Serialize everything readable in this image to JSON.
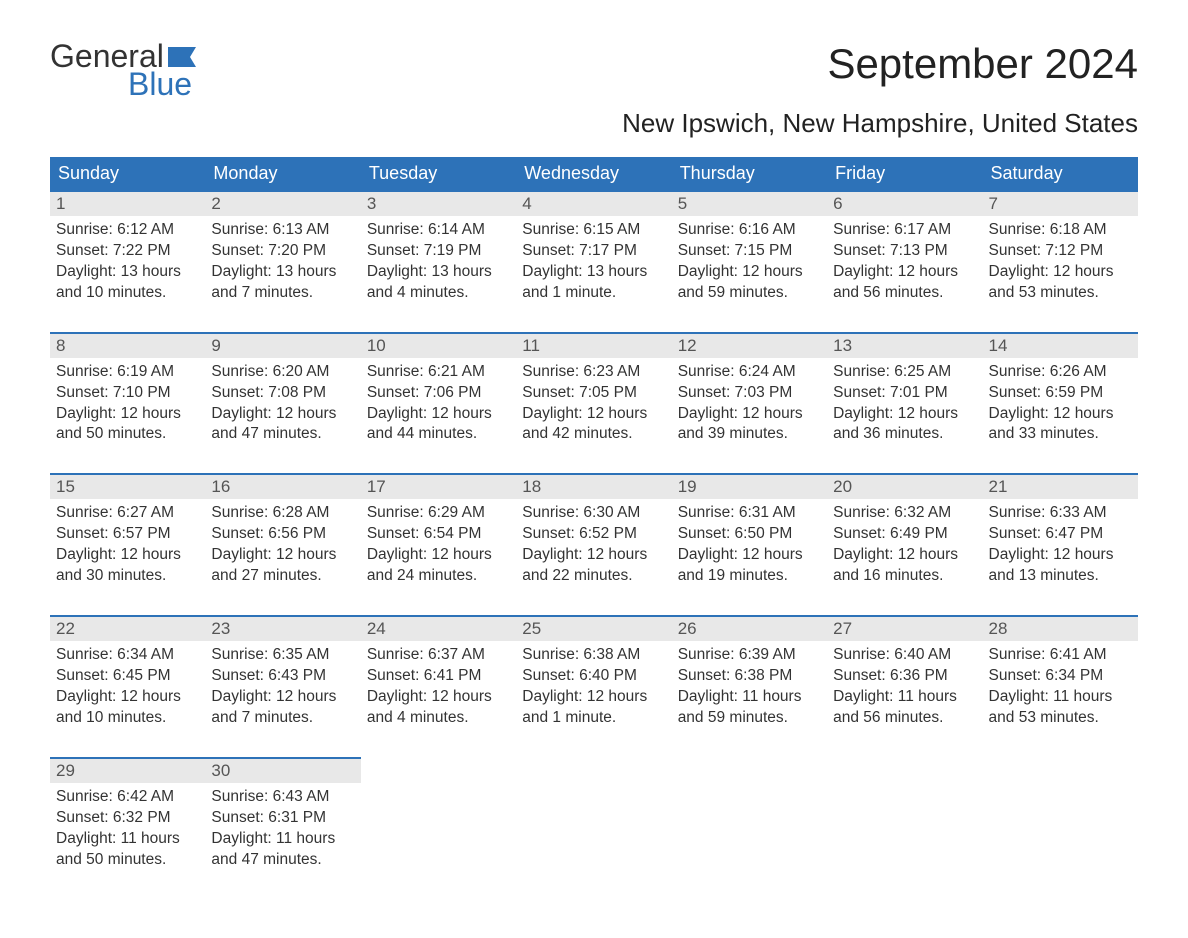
{
  "logo": {
    "word1": "General",
    "word2": "Blue"
  },
  "title": "September 2024",
  "location": "New Ipswich, New Hampshire, United States",
  "colors": {
    "header_bg": "#2d72b8",
    "header_text": "#ffffff",
    "daynum_bg": "#e8e8e8",
    "border": "#2d72b8",
    "text": "#333333",
    "background": "#ffffff"
  },
  "day_labels": [
    "Sunday",
    "Monday",
    "Tuesday",
    "Wednesday",
    "Thursday",
    "Friday",
    "Saturday"
  ],
  "weeks": [
    [
      {
        "n": "1",
        "sunrise": "Sunrise: 6:12 AM",
        "sunset": "Sunset: 7:22 PM",
        "d1": "Daylight: 13 hours",
        "d2": "and 10 minutes."
      },
      {
        "n": "2",
        "sunrise": "Sunrise: 6:13 AM",
        "sunset": "Sunset: 7:20 PM",
        "d1": "Daylight: 13 hours",
        "d2": "and 7 minutes."
      },
      {
        "n": "3",
        "sunrise": "Sunrise: 6:14 AM",
        "sunset": "Sunset: 7:19 PM",
        "d1": "Daylight: 13 hours",
        "d2": "and 4 minutes."
      },
      {
        "n": "4",
        "sunrise": "Sunrise: 6:15 AM",
        "sunset": "Sunset: 7:17 PM",
        "d1": "Daylight: 13 hours",
        "d2": "and 1 minute."
      },
      {
        "n": "5",
        "sunrise": "Sunrise: 6:16 AM",
        "sunset": "Sunset: 7:15 PM",
        "d1": "Daylight: 12 hours",
        "d2": "and 59 minutes."
      },
      {
        "n": "6",
        "sunrise": "Sunrise: 6:17 AM",
        "sunset": "Sunset: 7:13 PM",
        "d1": "Daylight: 12 hours",
        "d2": "and 56 minutes."
      },
      {
        "n": "7",
        "sunrise": "Sunrise: 6:18 AM",
        "sunset": "Sunset: 7:12 PM",
        "d1": "Daylight: 12 hours",
        "d2": "and 53 minutes."
      }
    ],
    [
      {
        "n": "8",
        "sunrise": "Sunrise: 6:19 AM",
        "sunset": "Sunset: 7:10 PM",
        "d1": "Daylight: 12 hours",
        "d2": "and 50 minutes."
      },
      {
        "n": "9",
        "sunrise": "Sunrise: 6:20 AM",
        "sunset": "Sunset: 7:08 PM",
        "d1": "Daylight: 12 hours",
        "d2": "and 47 minutes."
      },
      {
        "n": "10",
        "sunrise": "Sunrise: 6:21 AM",
        "sunset": "Sunset: 7:06 PM",
        "d1": "Daylight: 12 hours",
        "d2": "and 44 minutes."
      },
      {
        "n": "11",
        "sunrise": "Sunrise: 6:23 AM",
        "sunset": "Sunset: 7:05 PM",
        "d1": "Daylight: 12 hours",
        "d2": "and 42 minutes."
      },
      {
        "n": "12",
        "sunrise": "Sunrise: 6:24 AM",
        "sunset": "Sunset: 7:03 PM",
        "d1": "Daylight: 12 hours",
        "d2": "and 39 minutes."
      },
      {
        "n": "13",
        "sunrise": "Sunrise: 6:25 AM",
        "sunset": "Sunset: 7:01 PM",
        "d1": "Daylight: 12 hours",
        "d2": "and 36 minutes."
      },
      {
        "n": "14",
        "sunrise": "Sunrise: 6:26 AM",
        "sunset": "Sunset: 6:59 PM",
        "d1": "Daylight: 12 hours",
        "d2": "and 33 minutes."
      }
    ],
    [
      {
        "n": "15",
        "sunrise": "Sunrise: 6:27 AM",
        "sunset": "Sunset: 6:57 PM",
        "d1": "Daylight: 12 hours",
        "d2": "and 30 minutes."
      },
      {
        "n": "16",
        "sunrise": "Sunrise: 6:28 AM",
        "sunset": "Sunset: 6:56 PM",
        "d1": "Daylight: 12 hours",
        "d2": "and 27 minutes."
      },
      {
        "n": "17",
        "sunrise": "Sunrise: 6:29 AM",
        "sunset": "Sunset: 6:54 PM",
        "d1": "Daylight: 12 hours",
        "d2": "and 24 minutes."
      },
      {
        "n": "18",
        "sunrise": "Sunrise: 6:30 AM",
        "sunset": "Sunset: 6:52 PM",
        "d1": "Daylight: 12 hours",
        "d2": "and 22 minutes."
      },
      {
        "n": "19",
        "sunrise": "Sunrise: 6:31 AM",
        "sunset": "Sunset: 6:50 PM",
        "d1": "Daylight: 12 hours",
        "d2": "and 19 minutes."
      },
      {
        "n": "20",
        "sunrise": "Sunrise: 6:32 AM",
        "sunset": "Sunset: 6:49 PM",
        "d1": "Daylight: 12 hours",
        "d2": "and 16 minutes."
      },
      {
        "n": "21",
        "sunrise": "Sunrise: 6:33 AM",
        "sunset": "Sunset: 6:47 PM",
        "d1": "Daylight: 12 hours",
        "d2": "and 13 minutes."
      }
    ],
    [
      {
        "n": "22",
        "sunrise": "Sunrise: 6:34 AM",
        "sunset": "Sunset: 6:45 PM",
        "d1": "Daylight: 12 hours",
        "d2": "and 10 minutes."
      },
      {
        "n": "23",
        "sunrise": "Sunrise: 6:35 AM",
        "sunset": "Sunset: 6:43 PM",
        "d1": "Daylight: 12 hours",
        "d2": "and 7 minutes."
      },
      {
        "n": "24",
        "sunrise": "Sunrise: 6:37 AM",
        "sunset": "Sunset: 6:41 PM",
        "d1": "Daylight: 12 hours",
        "d2": "and 4 minutes."
      },
      {
        "n": "25",
        "sunrise": "Sunrise: 6:38 AM",
        "sunset": "Sunset: 6:40 PM",
        "d1": "Daylight: 12 hours",
        "d2": "and 1 minute."
      },
      {
        "n": "26",
        "sunrise": "Sunrise: 6:39 AM",
        "sunset": "Sunset: 6:38 PM",
        "d1": "Daylight: 11 hours",
        "d2": "and 59 minutes."
      },
      {
        "n": "27",
        "sunrise": "Sunrise: 6:40 AM",
        "sunset": "Sunset: 6:36 PM",
        "d1": "Daylight: 11 hours",
        "d2": "and 56 minutes."
      },
      {
        "n": "28",
        "sunrise": "Sunrise: 6:41 AM",
        "sunset": "Sunset: 6:34 PM",
        "d1": "Daylight: 11 hours",
        "d2": "and 53 minutes."
      }
    ],
    [
      {
        "n": "29",
        "sunrise": "Sunrise: 6:42 AM",
        "sunset": "Sunset: 6:32 PM",
        "d1": "Daylight: 11 hours",
        "d2": "and 50 minutes."
      },
      {
        "n": "30",
        "sunrise": "Sunrise: 6:43 AM",
        "sunset": "Sunset: 6:31 PM",
        "d1": "Daylight: 11 hours",
        "d2": "and 47 minutes."
      },
      null,
      null,
      null,
      null,
      null
    ]
  ]
}
